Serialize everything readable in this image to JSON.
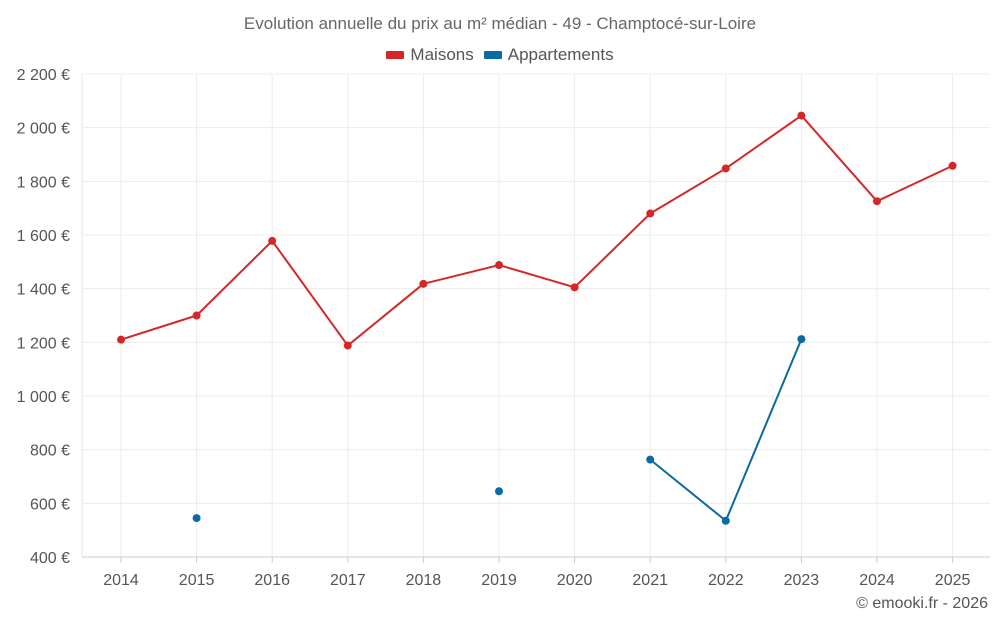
{
  "chart_data": {
    "type": "line",
    "title": "Evolution annuelle du prix au m² médian - 49 - Champtocé-sur-Loire",
    "xlabel": "",
    "ylabel": "",
    "x": [
      "2014",
      "2015",
      "2016",
      "2017",
      "2018",
      "2019",
      "2020",
      "2021",
      "2022",
      "2023",
      "2024",
      "2025"
    ],
    "ylim": [
      400,
      2200
    ],
    "yticks": [
      400,
      600,
      800,
      1000,
      1200,
      1400,
      1600,
      1800,
      2000,
      2200
    ],
    "ytick_labels": [
      "400 €",
      "600 €",
      "800 €",
      "1 000 €",
      "1 200 €",
      "1 400 €",
      "1 600 €",
      "1 800 €",
      "2 000 €",
      "2 200 €"
    ],
    "grid": true,
    "legend_position": "top-center",
    "series": [
      {
        "name": "Maisons",
        "color": "#d62728",
        "values": [
          1210,
          1300,
          1578,
          1188,
          1418,
          1488,
          1405,
          1680,
          1848,
          2045,
          1726,
          1858
        ]
      },
      {
        "name": "Appartements",
        "color": "#0a6aa1",
        "values": [
          null,
          545,
          null,
          null,
          null,
          645,
          null,
          763,
          535,
          1212,
          null,
          null
        ]
      }
    ]
  },
  "footer": {
    "copyright": "© emooki.fr - 2026"
  }
}
